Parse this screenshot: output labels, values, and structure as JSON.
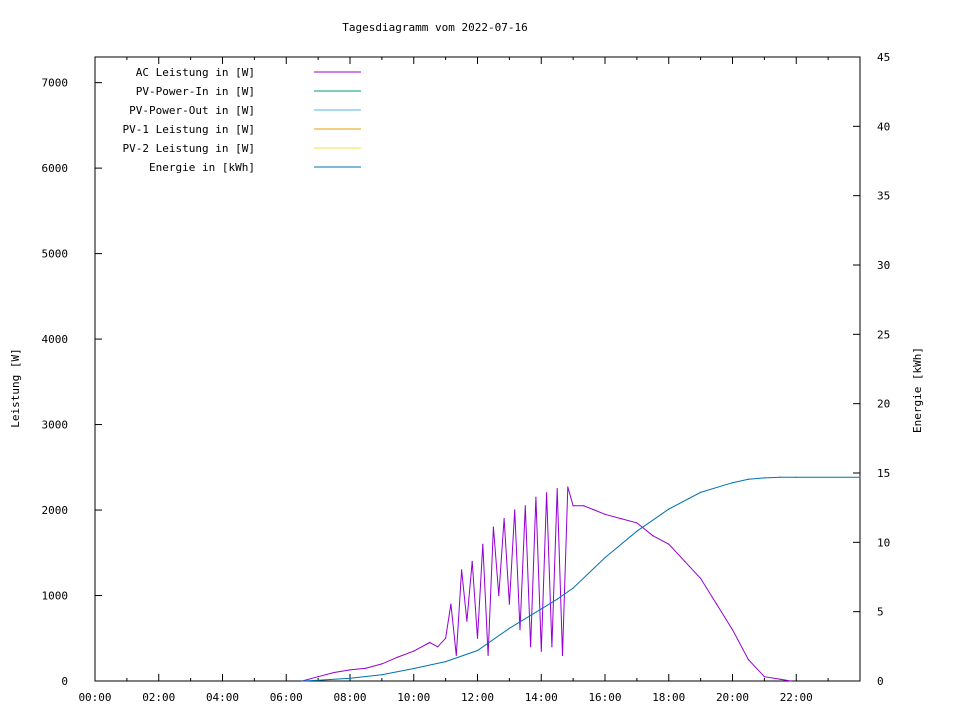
{
  "chart_data": {
    "type": "line",
    "title": "Tagesdiagramm vom 2022-07-16",
    "ylabel": "Leistung [W]",
    "y2label": "Energie [kWh]",
    "ylim": [
      0,
      7300
    ],
    "y2lim": [
      0,
      45
    ],
    "xlim_hours": [
      0,
      24
    ],
    "x_ticks": [
      "00:00",
      "02:00",
      "04:00",
      "06:00",
      "08:00",
      "10:00",
      "12:00",
      "14:00",
      "16:00",
      "18:00",
      "20:00",
      "22:00"
    ],
    "y_ticks": [
      0,
      1000,
      2000,
      3000,
      4000,
      5000,
      6000,
      7000
    ],
    "y2_ticks": [
      0,
      5,
      10,
      15,
      20,
      25,
      30,
      35,
      40,
      45
    ],
    "legend_position": "top-left",
    "grid": false,
    "series": [
      {
        "name": "AC Leistung in [W]",
        "axis": "left",
        "color": "#9400d3",
        "x": [
          "06:30",
          "07:00",
          "07:30",
          "08:00",
          "08:30",
          "09:00",
          "09:30",
          "10:00",
          "10:30",
          "10:45",
          "11:00",
          "11:10",
          "11:20",
          "11:30",
          "11:40",
          "11:50",
          "12:00",
          "12:10",
          "12:20",
          "12:30",
          "12:40",
          "12:50",
          "13:00",
          "13:10",
          "13:20",
          "13:30",
          "13:40",
          "13:50",
          "14:00",
          "14:10",
          "14:20",
          "14:30",
          "14:40",
          "14:50",
          "15:00",
          "15:20",
          "15:40",
          "16:00",
          "16:30",
          "17:00",
          "17:30",
          "18:00",
          "18:30",
          "19:00",
          "19:30",
          "20:00",
          "20:30",
          "21:00",
          "21:30",
          "21:50"
        ],
        "y": [
          0,
          50,
          100,
          130,
          150,
          200,
          280,
          350,
          450,
          400,
          500,
          900,
          300,
          1300,
          700,
          1400,
          500,
          1600,
          300,
          1800,
          1000,
          1900,
          900,
          2000,
          600,
          2050,
          400,
          2150,
          350,
          2200,
          400,
          2250,
          300,
          2270,
          2050,
          2050,
          2000,
          1950,
          1900,
          1850,
          1700,
          1600,
          1400,
          1200,
          900,
          600,
          250,
          50,
          20,
          0
        ]
      },
      {
        "name": "PV-Power-In in [W]",
        "axis": "left",
        "color": "#009e73",
        "x": [],
        "y": []
      },
      {
        "name": "PV-Power-Out in [W]",
        "axis": "left",
        "color": "#56b4e9",
        "x": [],
        "y": []
      },
      {
        "name": "PV-1 Leistung in [W]",
        "axis": "left",
        "color": "#e69f00",
        "x": [],
        "y": []
      },
      {
        "name": "PV-2 Leistung in [W]",
        "axis": "left",
        "color": "#f0e442",
        "x": [],
        "y": []
      },
      {
        "name": "Energie in [kWh]",
        "axis": "right",
        "color": "#0072b2",
        "x": [
          "06:30",
          "07:00",
          "08:00",
          "09:00",
          "10:00",
          "11:00",
          "12:00",
          "13:00",
          "14:00",
          "14:30",
          "15:00",
          "16:00",
          "17:00",
          "18:00",
          "19:00",
          "20:00",
          "20:30",
          "21:00",
          "21:30",
          "22:00",
          "24:00"
        ],
        "y": [
          0,
          0.05,
          0.2,
          0.45,
          0.9,
          1.4,
          2.2,
          3.8,
          5.2,
          5.9,
          6.7,
          8.9,
          10.8,
          12.4,
          13.6,
          14.3,
          14.55,
          14.65,
          14.7,
          14.7,
          14.7
        ]
      }
    ]
  }
}
